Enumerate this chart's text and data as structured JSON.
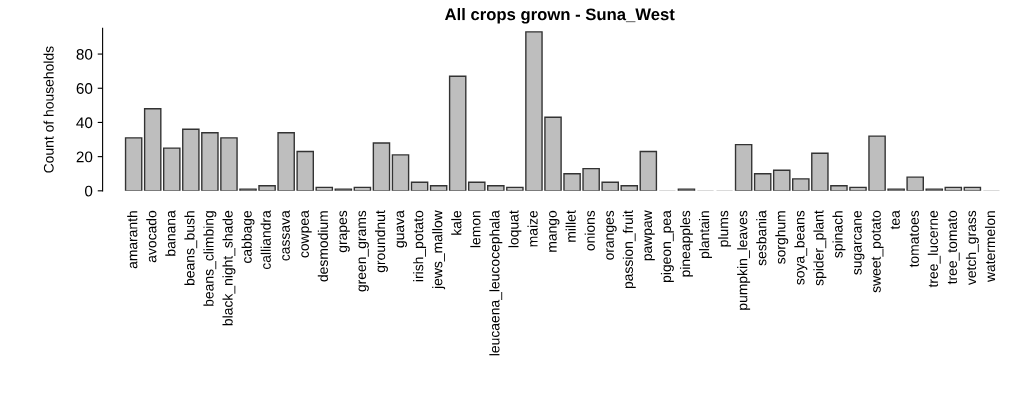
{
  "chart_data": {
    "type": "bar",
    "title": "All crops grown - Suna_West",
    "ylabel": "Count of households",
    "categories": [
      "amaranth",
      "avocado",
      "banana",
      "beans_bush",
      "beans_climbing",
      "black_night_shade",
      "cabbage",
      "calliandra",
      "cassava",
      "cowpea",
      "desmodium",
      "grapes",
      "green_grams",
      "groundnut",
      "guava",
      "irish_potato",
      "jews_mallow",
      "kale",
      "lemon",
      "leucaena_leucocephala",
      "loquat",
      "maize",
      "mango",
      "millet",
      "onions",
      "oranges",
      "passion_fruit",
      "pawpaw",
      "pigeon_pea",
      "pineapples",
      "plantain",
      "plums",
      "pumpkin_leaves",
      "sesbania",
      "sorghum",
      "soya_beans",
      "spider_plant",
      "spinach",
      "sugarcane",
      "sweet_potato",
      "tea",
      "tomatoes",
      "tree_lucerne",
      "tree_tomato",
      "vetch_grass",
      "watermelon"
    ],
    "values": [
      31,
      48,
      25,
      36,
      34,
      31,
      1,
      3,
      34,
      23,
      2,
      1,
      2,
      28,
      21,
      5,
      3,
      67,
      5,
      3,
      2,
      93,
      43,
      10,
      13,
      5,
      3,
      23,
      0,
      1,
      0,
      0,
      27,
      10,
      12,
      7,
      22,
      3,
      2,
      32,
      1,
      8,
      1,
      2,
      2,
      0
    ],
    "color": "#bebebe",
    "ylim": [
      0,
      95
    ],
    "yticks": [
      0,
      20,
      40,
      60,
      80
    ],
    "grid": false
  }
}
